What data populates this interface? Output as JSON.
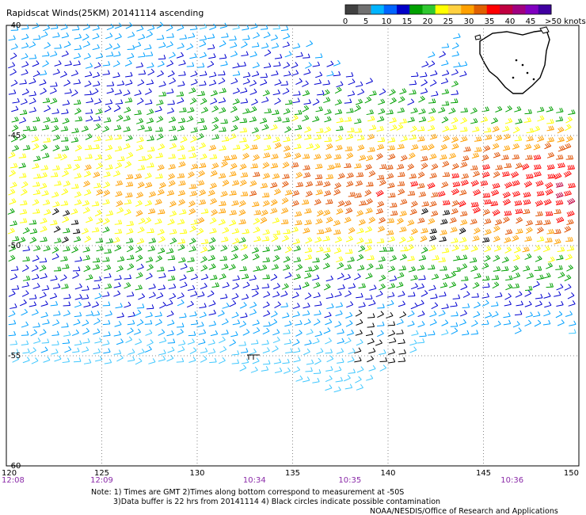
{
  "title": "Rapidscat Winds(25KM) 20141114 ascending",
  "colorbar": {
    "labels": [
      "0",
      "5",
      "10",
      "15",
      "20",
      "25",
      "30",
      "35",
      "40",
      "45",
      ">50 knots"
    ],
    "colors": [
      "#404040",
      "#707070",
      "#00b4ff",
      "#0064ff",
      "#0000c8",
      "#00a000",
      "#30c830",
      "#ffff00",
      "#ffd040",
      "#ffa000",
      "#e06000",
      "#ff0000",
      "#c00040",
      "#a00080",
      "#8000c0",
      "#4000a0"
    ]
  },
  "axes": {
    "lat_labels": [
      "-40",
      "-45",
      "-50",
      "-55",
      "-60"
    ],
    "lon_labels": [
      "120",
      "125",
      "130",
      "135",
      "140",
      "145",
      "150"
    ]
  },
  "times": [
    {
      "label": "12:08",
      "lon": 120
    },
    {
      "label": "12:09",
      "lon": 125
    },
    {
      "label": "10:34",
      "lon": 133
    },
    {
      "label": "10:35",
      "lon": 138
    },
    {
      "label": "10:36",
      "lon": 146.5
    }
  ],
  "notes": {
    "line1": "Note: 1) Times are GMT 2)Times along bottom correspond to measurement at -50S",
    "line2": "3)Data buffer is 22 hrs from 20141114 4) Black circles indicate possible contamination",
    "line3": "NOAA/NESDIS/Office of Research and Applications"
  },
  "landmass": "Tasmania"
}
